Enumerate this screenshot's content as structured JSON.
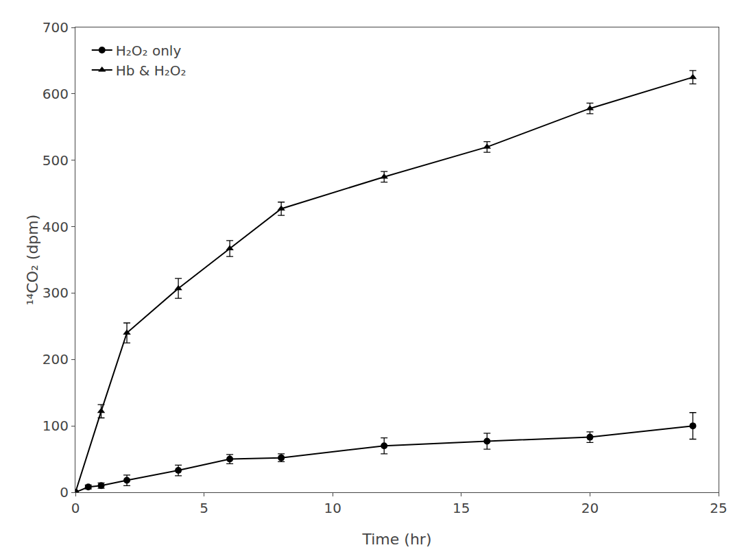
{
  "chart_data": {
    "type": "line",
    "xlabel": "Time (hr)",
    "ylabel": "¹⁴CO₂ (dpm)",
    "series": [
      {
        "name": "H₂O₂ only",
        "color": "#000000",
        "marker": "circle",
        "line_style": "solid",
        "x": [
          0,
          0.5,
          1,
          2,
          4,
          6,
          8,
          12,
          16,
          20,
          24
        ],
        "values": [
          0,
          8,
          10,
          18,
          33,
          50,
          52,
          70,
          77,
          83,
          100
        ],
        "yerr": [
          0,
          3,
          4,
          8,
          8,
          7,
          6,
          12,
          12,
          8,
          20
        ]
      },
      {
        "name": "Hb & H₂O₂",
        "color": "#000000",
        "marker": "triangle-up",
        "line_style": "solid",
        "x": [
          0,
          1,
          2,
          4,
          6,
          8,
          12,
          16,
          20,
          24
        ],
        "values": [
          0,
          122,
          240,
          307,
          367,
          427,
          475,
          520,
          578,
          625
        ],
        "yerr": [
          0,
          10,
          15,
          15,
          12,
          10,
          8,
          8,
          8,
          10
        ]
      }
    ],
    "xlim": [
      0,
      25
    ],
    "ylim": [
      0,
      700
    ],
    "xticks": [
      0,
      5,
      10,
      15,
      20,
      25
    ],
    "yticks": [
      0,
      100,
      200,
      300,
      400,
      500,
      600,
      700
    ],
    "grid": false,
    "legend": "upper left"
  }
}
